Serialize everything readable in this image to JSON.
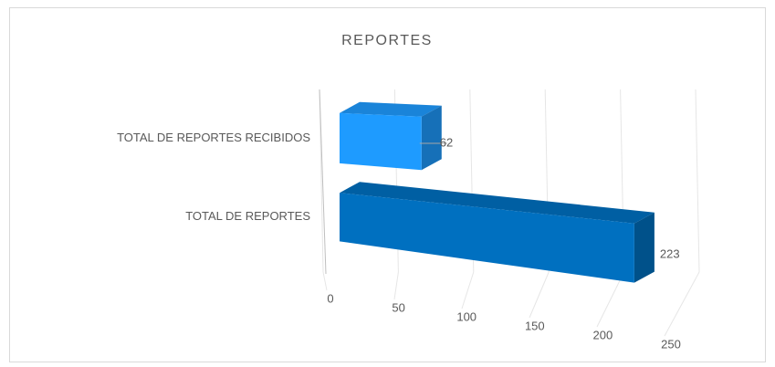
{
  "chart_data": {
    "type": "bar3d_horizontal",
    "title": "REPORTES",
    "categories": [
      "TOTAL DE REPORTES RECIBIDOS",
      "TOTAL DE REPORTES"
    ],
    "values": [
      62,
      223
    ],
    "colors": [
      "#1e9bff",
      "#0070c0"
    ],
    "xlim": [
      0,
      250
    ],
    "xticks": [
      0,
      50,
      100,
      150,
      200,
      250
    ],
    "grid": true
  }
}
